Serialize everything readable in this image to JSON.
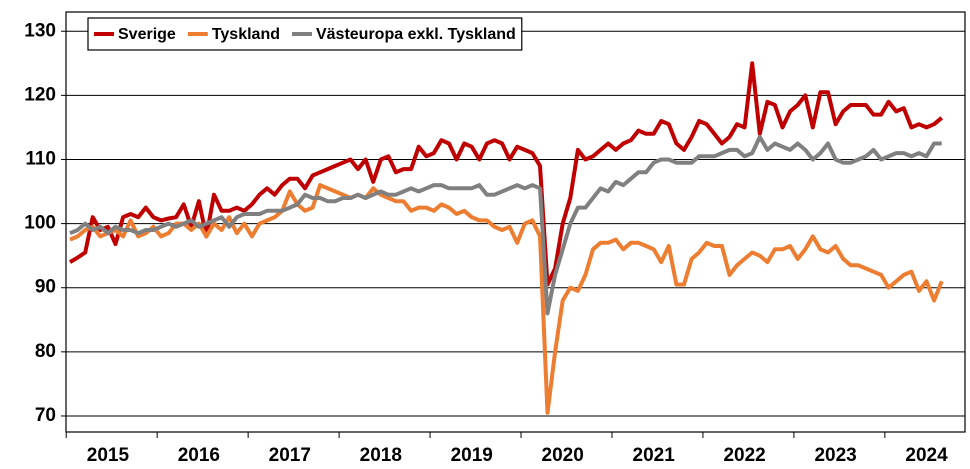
{
  "chart_data": {
    "type": "line",
    "categories": [
      null,
      null,
      null,
      null,
      null,
      "2015",
      null,
      null,
      null,
      null,
      null,
      null,
      null,
      null,
      null,
      null,
      null,
      "2016",
      null,
      null,
      null,
      null,
      null,
      null,
      null,
      null,
      null,
      null,
      null,
      "2017",
      null,
      null,
      null,
      null,
      null,
      null,
      null,
      null,
      null,
      null,
      null,
      "2018",
      null,
      null,
      null,
      null,
      null,
      null,
      null,
      null,
      null,
      null,
      null,
      "2019",
      null,
      null,
      null,
      null,
      null,
      null,
      null,
      null,
      null,
      null,
      null,
      "2020",
      null,
      null,
      null,
      null,
      null,
      null,
      null,
      null,
      null,
      null,
      null,
      "2021",
      null,
      null,
      null,
      null,
      null,
      null,
      null,
      null,
      null,
      null,
      null,
      "2022",
      null,
      null,
      null,
      null,
      null,
      null,
      null,
      null,
      null,
      null,
      null,
      "2023",
      null,
      null,
      null,
      null,
      null,
      null,
      null,
      null,
      null,
      null,
      null,
      "2024",
      null,
      null
    ],
    "series": [
      {
        "name": "Sverige",
        "color": "#c00000",
        "values": [
          94,
          94.7,
          95.5,
          101,
          99,
          99.5,
          96.8,
          101,
          101.5,
          101,
          102.5,
          101,
          100.5,
          100.8,
          101,
          103,
          99.5,
          103.5,
          98,
          104.5,
          102,
          102,
          102.5,
          102,
          103,
          104.5,
          105.5,
          104.5,
          106,
          107,
          107,
          105.5,
          107.5,
          108,
          108.5,
          109,
          109.5,
          110,
          108.5,
          110,
          106.5,
          110,
          110.5,
          108,
          108.5,
          108.5,
          112,
          110.5,
          111,
          113,
          112.5,
          110,
          112.5,
          112,
          110,
          112.5,
          113,
          112.5,
          110,
          112,
          111.5,
          111,
          109,
          90.5,
          93,
          100,
          104,
          111.5,
          110,
          110.5,
          111.5,
          112.5,
          111.5,
          112.5,
          113,
          114.5,
          114,
          114,
          116,
          115.5,
          112.5,
          111.5,
          113.5,
          116,
          115.5,
          114,
          112.5,
          113.5,
          115.5,
          115,
          125,
          114,
          119,
          118.5,
          115,
          117.5,
          118.5,
          120,
          115,
          120.5,
          120.5,
          115.5,
          117.5,
          118.5,
          118.5,
          118.5,
          117,
          117,
          119,
          117.5,
          118,
          115,
          115.5,
          115,
          115.5,
          116.5
        ]
      },
      {
        "name": "Tyskland",
        "color": "#ed7d31",
        "values": [
          97.5,
          98,
          99,
          99.5,
          98,
          98.5,
          99,
          98,
          100.5,
          98,
          98.5,
          99.5,
          98,
          98.5,
          100,
          100,
          99,
          100,
          98,
          100,
          99,
          101,
          98.5,
          100,
          98,
          100,
          100.5,
          101,
          102,
          105,
          103,
          102,
          102.5,
          106,
          105.5,
          105,
          104.5,
          104,
          104.5,
          104,
          105.5,
          104.5,
          104,
          103.5,
          103.5,
          102,
          102.5,
          102.5,
          102,
          103,
          102.5,
          101.5,
          102,
          101,
          100.5,
          100.5,
          99.5,
          99,
          99.5,
          97,
          100,
          100.5,
          98,
          70.5,
          80,
          88,
          90,
          89.5,
          92,
          96,
          97,
          97,
          97.5,
          96,
          97,
          97,
          96.5,
          96,
          94,
          96.5,
          90.5,
          90.5,
          94.5,
          95.5,
          97,
          96.5,
          96.5,
          92,
          93.5,
          94.5,
          95.5,
          95,
          94,
          96,
          96,
          96.5,
          94.5,
          96,
          98,
          96,
          95.5,
          96.5,
          94.5,
          93.5,
          93.5,
          93,
          92.5,
          92,
          90,
          91,
          92,
          92.5,
          89.5,
          91,
          88,
          91
        ]
      },
      {
        "name": "Västeuropa exkl. Tyskland",
        "color": "#808080",
        "values": [
          98.5,
          99,
          100,
          99,
          99.5,
          98.5,
          99.5,
          99,
          99,
          98.5,
          99,
          99,
          99.5,
          100,
          99.5,
          100,
          100.5,
          99.5,
          100,
          100.5,
          101,
          99.5,
          101,
          101.5,
          101.5,
          101.5,
          102,
          102,
          102,
          102.5,
          103,
          104.5,
          104,
          104,
          103.5,
          103.5,
          104,
          104,
          104.5,
          104,
          104.5,
          105,
          104.5,
          104.5,
          105,
          105.5,
          105,
          105.5,
          106,
          106,
          105.5,
          105.5,
          105.5,
          105.5,
          106,
          104.5,
          104.5,
          105,
          105.5,
          106,
          105.5,
          106,
          105.5,
          86,
          92,
          96,
          100,
          102.5,
          102.5,
          104,
          105.5,
          105,
          106.5,
          106,
          107,
          108,
          108,
          109.5,
          110,
          110,
          109.5,
          109.5,
          109.5,
          110.5,
          110.5,
          110.5,
          111,
          111.5,
          111.5,
          110.5,
          111,
          113.5,
          111.5,
          112.5,
          112,
          111.5,
          112.5,
          111.5,
          110,
          111,
          112.5,
          110,
          109.5,
          109.5,
          110,
          110.5,
          111.5,
          110,
          110.5,
          111,
          111,
          110.5,
          111,
          110.5,
          112.5,
          112.5
        ]
      }
    ],
    "ylim": [
      67.5,
      133
    ],
    "yticks": [
      70,
      80,
      90,
      100,
      110,
      120,
      130
    ],
    "grid": true,
    "legend": "top-left"
  }
}
